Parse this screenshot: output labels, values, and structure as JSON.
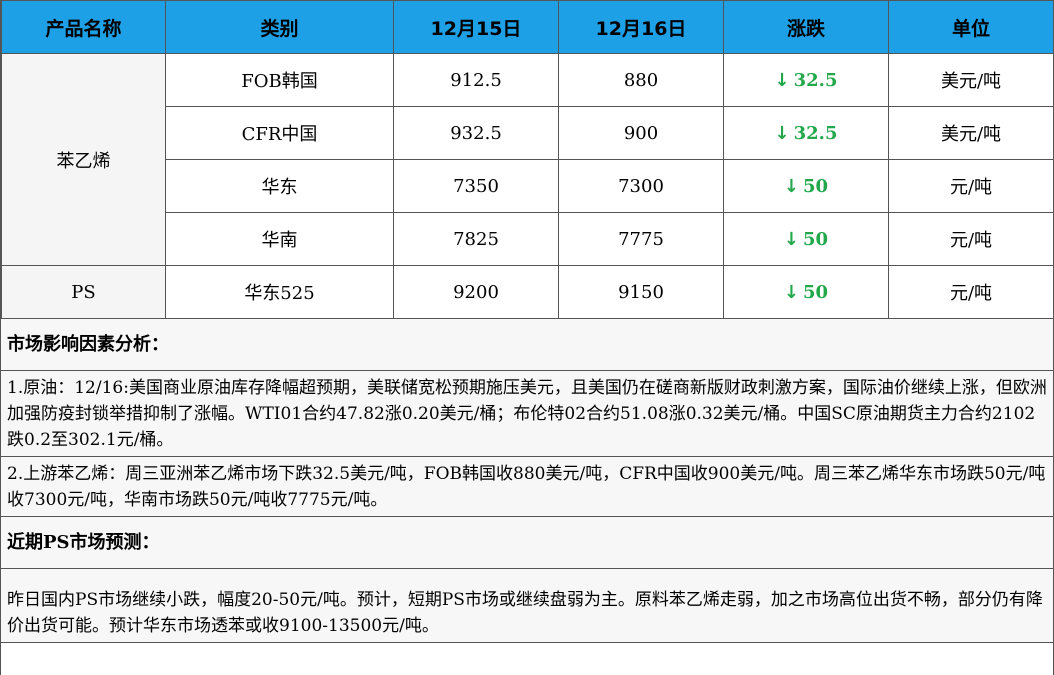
{
  "table": {
    "headers": [
      "产品名称",
      "类别",
      "12月15日",
      "12月16日",
      "涨跌",
      "单位"
    ],
    "groups": [
      {
        "product": "苯乙烯",
        "rows": [
          {
            "category": "FOB韩国",
            "dec15": "912.5",
            "dec16": "880",
            "change": "32.5",
            "unit": "美元/吨"
          },
          {
            "category": "CFR中国",
            "dec15": "932.5",
            "dec16": "900",
            "change": "32.5",
            "unit": "美元/吨"
          },
          {
            "category": "华东",
            "dec15": "7350",
            "dec16": "7300",
            "change": "50",
            "unit": "元/吨"
          },
          {
            "category": "华南",
            "dec15": "7825",
            "dec16": "7775",
            "change": "50",
            "unit": "元/吨"
          }
        ]
      },
      {
        "product": "PS",
        "rows": [
          {
            "category": "华东525",
            "dec15": "9200",
            "dec16": "9150",
            "change": "50",
            "unit": "元/吨"
          }
        ]
      }
    ],
    "change_arrow": "↓",
    "down_color": "#22a84a"
  },
  "analysis": {
    "title": "市场影响因素分析：",
    "item1": "1.原油：12/16:美国商业原油库存降幅超预期，美联储宽松预期施压美元，且美国仍在磋商新版财政刺激方案，国际油价继续上涨，但欧洲加强防疫封锁举措抑制了涨幅。WTI01合约47.82涨0.20美元/桶；布伦特02合约51.08涨0.32美元/桶。中国SC原油期货主力合约2102跌0.2至302.1元/桶。",
    "item2": "2.上游苯乙烯：周三亚洲苯乙烯市场下跌32.5美元/吨，FOB韩国收880美元/吨，CFR中国收900美元/吨。周三苯乙烯华东市场跌50元/吨收7300元/吨，华南市场跌50元/吨收7775元/吨。"
  },
  "forecast": {
    "title": "近期PS市场预测：",
    "text": "昨日国内PS市场继续小跌，幅度20-50元/吨。预计，短期PS市场或继续盘弱为主。原料苯乙烯走弱，加之市场高位出货不畅，部分仍有降价出货可能。预计华东市场透苯或收9100-13500元/吨。"
  }
}
